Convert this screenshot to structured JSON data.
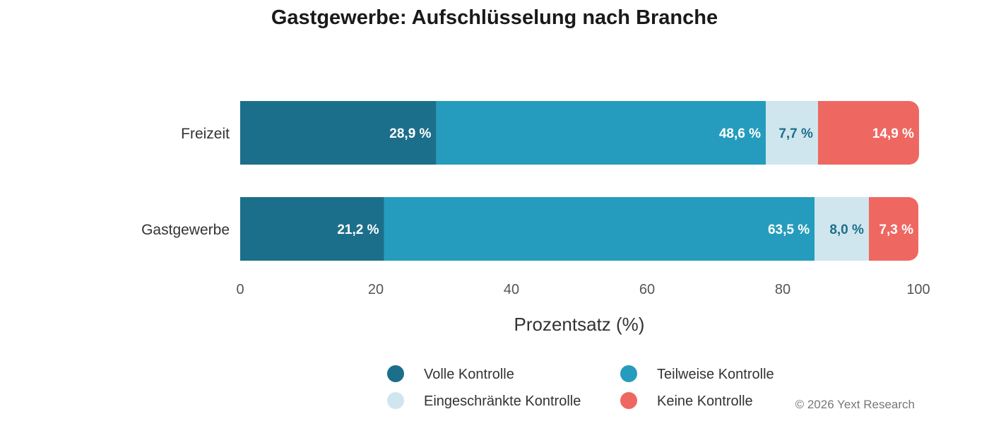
{
  "chart_data": {
    "type": "bar",
    "orientation": "horizontal",
    "stacked": true,
    "title": "Gastgewerbe: Aufschlüsselung nach Branche",
    "xlabel": "Prozentsatz (%)",
    "ylabel": "",
    "xlim": [
      0,
      100
    ],
    "x_ticks": [
      "0",
      "20",
      "40",
      "60",
      "80",
      "100"
    ],
    "categories": [
      "Freizeit",
      "Gastgewerbe"
    ],
    "series": [
      {
        "name": "Volle Kontrolle",
        "color": "#1c6f8a",
        "label_color": "#ffffff",
        "values": [
          28.9,
          21.2
        ],
        "labels": [
          "28,9 %",
          "21,2 %"
        ]
      },
      {
        "name": "Teilweise Kontrolle",
        "color": "#259cbd",
        "label_color": "#ffffff",
        "values": [
          48.6,
          63.5
        ],
        "labels": [
          "48,6 %",
          "63,5 %"
        ]
      },
      {
        "name": "Eingeschränkte Kontrolle",
        "color": "#cfe6ef",
        "label_color": "#1c6f8a",
        "values": [
          7.7,
          8.0
        ],
        "labels": [
          "7,7 %",
          "8,0 %"
        ]
      },
      {
        "name": "Keine Kontrolle",
        "color": "#ee6861",
        "label_color": "#ffffff",
        "values": [
          14.9,
          7.3
        ],
        "labels": [
          "14,9 %",
          "7,3 %"
        ]
      }
    ],
    "legend_position": "bottom",
    "grid": false
  },
  "credit": "© 2026 Yext Research"
}
